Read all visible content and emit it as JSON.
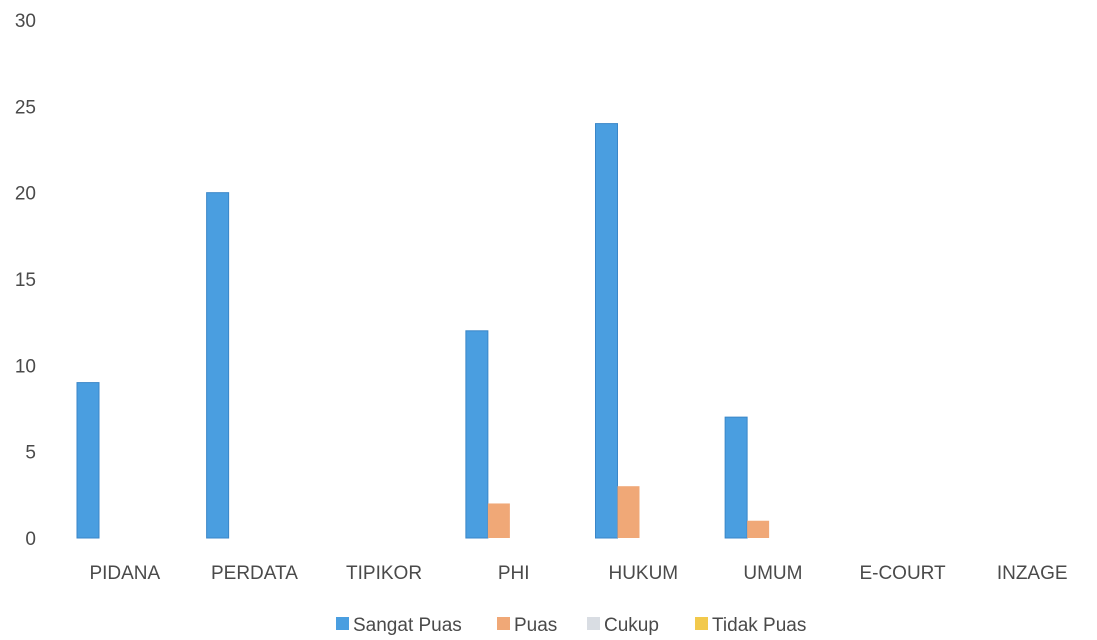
{
  "chart_data": {
    "type": "bar",
    "title": "",
    "xlabel": "",
    "ylabel": "",
    "ylim": [
      0,
      30
    ],
    "yticks": [
      0,
      5,
      10,
      15,
      20,
      25,
      30
    ],
    "grid": false,
    "legend_position": "bottom",
    "categories": [
      "PIDANA",
      "PERDATA",
      "TIPIKOR",
      "PHI",
      "HUKUM",
      "UMUM",
      "E-COURT",
      "INZAGE"
    ],
    "series": [
      {
        "name": "Sangat Puas",
        "color": "#4a9ee0",
        "values": [
          9,
          20,
          0,
          12,
          24,
          7,
          0,
          0
        ]
      },
      {
        "name": "Puas",
        "color": "#f0a877",
        "values": [
          0,
          0,
          0,
          2,
          3,
          1,
          0,
          0
        ]
      },
      {
        "name": "Cukup",
        "color": "#d9dde3",
        "values": [
          0,
          0,
          0,
          0,
          0,
          0,
          0,
          0
        ]
      },
      {
        "name": "Tidak Puas",
        "color": "#f2c94c",
        "values": [
          0,
          0,
          0,
          0,
          0,
          0,
          0,
          0
        ]
      }
    ]
  }
}
